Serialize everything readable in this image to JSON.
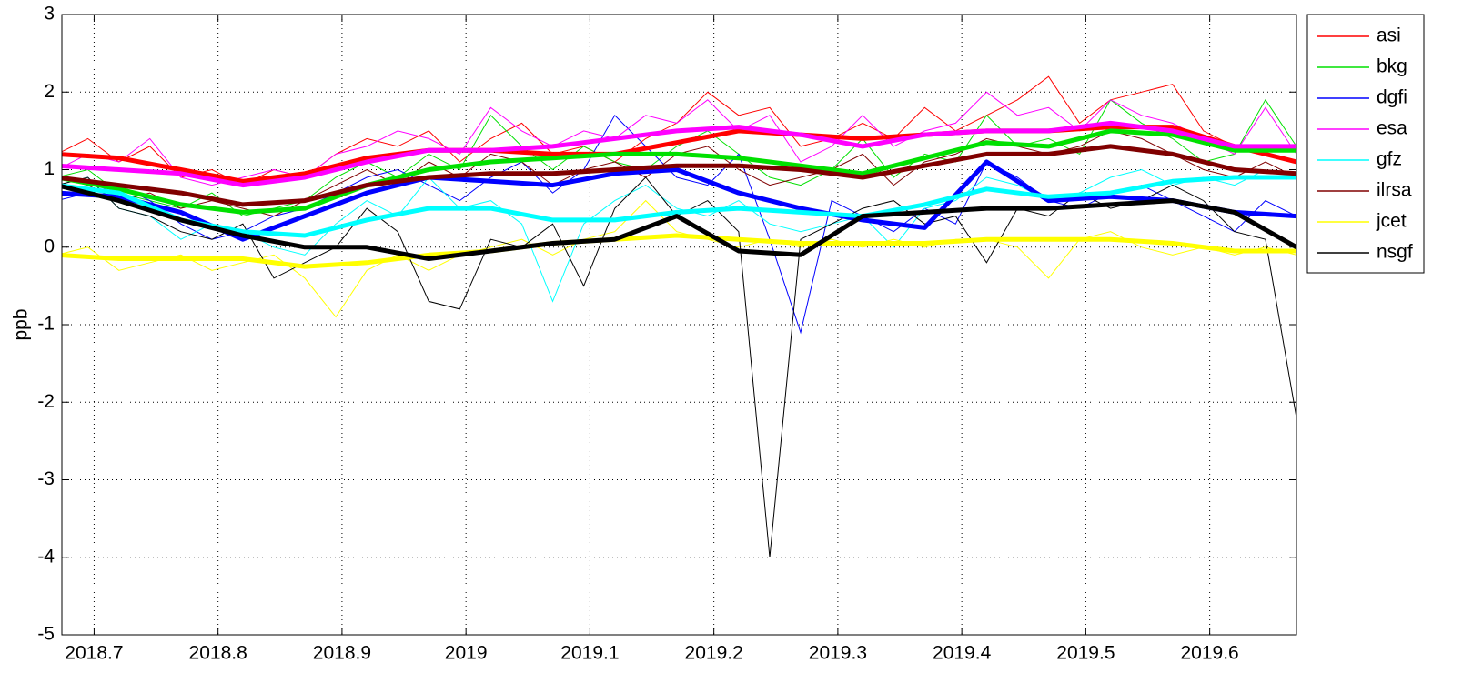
{
  "chart_data": {
    "type": "line",
    "ylabel": "ppb",
    "xlim": [
      2018.674,
      2019.67
    ],
    "ylim": [
      -5,
      3
    ],
    "xticks": [
      2018.7,
      2018.8,
      2018.9,
      2019,
      2019.1,
      2019.2,
      2019.3,
      2019.4,
      2019.5,
      2019.6
    ],
    "yticks": [
      -5,
      -4,
      -3,
      -2,
      -1,
      0,
      1,
      2,
      3
    ],
    "grid": true,
    "legend": "outside-right",
    "x": [
      2018.67,
      2018.695,
      2018.72,
      2018.745,
      2018.77,
      2018.795,
      2018.82,
      2018.845,
      2018.87,
      2018.895,
      2018.92,
      2018.945,
      2018.97,
      2018.995,
      2019.02,
      2019.045,
      2019.07,
      2019.095,
      2019.12,
      2019.145,
      2019.17,
      2019.195,
      2019.22,
      2019.245,
      2019.27,
      2019.295,
      2019.32,
      2019.345,
      2019.37,
      2019.395,
      2019.42,
      2019.445,
      2019.47,
      2019.495,
      2019.52,
      2019.545,
      2019.57,
      2019.595,
      2019.62,
      2019.645,
      2019.67
    ],
    "trend_x": [
      2018.67,
      2018.72,
      2018.77,
      2018.82,
      2018.87,
      2018.92,
      2018.97,
      2019.02,
      2019.07,
      2019.12,
      2019.17,
      2019.22,
      2019.27,
      2019.32,
      2019.37,
      2019.42,
      2019.47,
      2019.52,
      2019.57,
      2019.62,
      2019.67
    ],
    "series": [
      {
        "name": "asi",
        "color": "#ff0000",
        "values": [
          1.2,
          1.4,
          1.1,
          1.3,
          0.9,
          1.0,
          0.8,
          1.0,
          0.9,
          1.2,
          1.4,
          1.3,
          1.5,
          1.1,
          1.4,
          1.6,
          1.2,
          1.3,
          1.1,
          1.4,
          1.6,
          2.0,
          1.7,
          1.8,
          1.3,
          1.4,
          1.6,
          1.4,
          1.8,
          1.5,
          1.7,
          1.9,
          2.2,
          1.6,
          1.9,
          2.0,
          2.1,
          1.5,
          1.3,
          1.2,
          1.1
        ],
        "trend": [
          1.2,
          1.15,
          1.0,
          0.85,
          0.95,
          1.15,
          1.25,
          1.25,
          1.2,
          1.2,
          1.35,
          1.5,
          1.45,
          1.4,
          1.45,
          1.5,
          1.5,
          1.55,
          1.55,
          1.3,
          1.1
        ]
      },
      {
        "name": "bkg",
        "color": "#00e000",
        "values": [
          0.9,
          1.0,
          0.7,
          0.6,
          0.5,
          0.7,
          0.4,
          0.5,
          0.6,
          0.9,
          1.1,
          0.9,
          1.2,
          1.0,
          1.7,
          1.3,
          1.0,
          1.3,
          1.1,
          1.0,
          1.3,
          1.5,
          1.2,
          0.9,
          0.8,
          1.0,
          1.4,
          0.9,
          1.2,
          1.1,
          1.7,
          1.3,
          1.4,
          1.2,
          1.9,
          1.6,
          1.4,
          1.1,
          1.2,
          1.9,
          1.3
        ],
        "trend": [
          0.9,
          0.75,
          0.55,
          0.45,
          0.5,
          0.8,
          1.0,
          1.1,
          1.15,
          1.2,
          1.2,
          1.15,
          1.05,
          0.95,
          1.15,
          1.35,
          1.3,
          1.5,
          1.45,
          1.25,
          1.25
        ]
      },
      {
        "name": "dgfi",
        "color": "#0000ff",
        "values": [
          0.6,
          0.7,
          0.8,
          0.6,
          0.3,
          0.1,
          0.2,
          0.4,
          0.5,
          0.7,
          0.9,
          1.0,
          0.8,
          0.6,
          0.9,
          1.1,
          0.7,
          1.0,
          1.7,
          1.3,
          0.9,
          0.8,
          1.2,
          0.1,
          -1.1,
          0.6,
          0.4,
          0.2,
          0.5,
          0.3,
          1.1,
          0.9,
          0.6,
          0.5,
          0.7,
          0.8,
          0.6,
          0.4,
          0.2,
          0.6,
          0.4
        ],
        "trend": [
          0.7,
          0.65,
          0.45,
          0.1,
          0.4,
          0.7,
          0.9,
          0.85,
          0.8,
          0.95,
          1.0,
          0.7,
          0.5,
          0.35,
          0.25,
          1.1,
          0.6,
          0.65,
          0.6,
          0.45,
          0.4
        ]
      },
      {
        "name": "esa",
        "color": "#ff00ff",
        "values": [
          1.0,
          1.2,
          1.1,
          1.4,
          0.9,
          0.8,
          0.9,
          1.0,
          0.9,
          1.2,
          1.3,
          1.5,
          1.4,
          1.2,
          1.8,
          1.5,
          1.3,
          1.5,
          1.4,
          1.7,
          1.6,
          1.9,
          1.5,
          1.7,
          1.1,
          1.3,
          1.7,
          1.3,
          1.5,
          1.6,
          2.0,
          1.7,
          1.8,
          1.5,
          1.9,
          1.7,
          1.6,
          1.4,
          1.2,
          1.8,
          1.2
        ],
        "trend": [
          1.05,
          1.0,
          0.95,
          0.8,
          0.9,
          1.1,
          1.25,
          1.25,
          1.3,
          1.4,
          1.5,
          1.55,
          1.45,
          1.3,
          1.45,
          1.5,
          1.5,
          1.6,
          1.5,
          1.3,
          1.3
        ]
      },
      {
        "name": "gfz",
        "color": "#00ffff",
        "values": [
          0.8,
          0.9,
          0.5,
          0.4,
          0.1,
          0.3,
          0.2,
          0.0,
          -0.1,
          0.3,
          0.6,
          0.4,
          0.9,
          0.5,
          0.6,
          0.3,
          -0.7,
          0.3,
          0.6,
          0.8,
          0.5,
          0.4,
          0.6,
          0.3,
          0.2,
          0.3,
          0.4,
          0.0,
          0.5,
          0.6,
          0.9,
          0.8,
          0.6,
          0.7,
          0.9,
          1.0,
          0.8,
          0.9,
          0.8,
          1.0,
          0.9
        ],
        "trend": [
          0.8,
          0.7,
          0.35,
          0.2,
          0.15,
          0.35,
          0.5,
          0.5,
          0.35,
          0.35,
          0.45,
          0.5,
          0.45,
          0.4,
          0.55,
          0.75,
          0.65,
          0.7,
          0.85,
          0.9,
          0.9
        ]
      },
      {
        "name": "ilrsa",
        "color": "#800000",
        "values": [
          0.9,
          0.8,
          0.6,
          0.7,
          0.5,
          0.6,
          0.5,
          0.4,
          0.6,
          0.8,
          1.0,
          0.8,
          1.1,
          0.9,
          1.2,
          1.1,
          0.8,
          1.0,
          1.1,
          0.9,
          1.2,
          1.3,
          1.0,
          0.8,
          0.9,
          1.0,
          1.2,
          0.8,
          1.1,
          1.2,
          1.4,
          1.3,
          1.2,
          1.3,
          1.5,
          1.4,
          1.2,
          1.0,
          0.9,
          1.1,
          0.9
        ],
        "trend": [
          0.9,
          0.8,
          0.7,
          0.55,
          0.6,
          0.8,
          0.9,
          0.95,
          0.95,
          1.0,
          1.05,
          1.05,
          1.0,
          0.9,
          1.05,
          1.2,
          1.2,
          1.3,
          1.2,
          1.0,
          0.95
        ]
      },
      {
        "name": "jcet",
        "color": "#ffff00",
        "values": [
          -0.1,
          0.0,
          -0.3,
          -0.2,
          -0.1,
          -0.3,
          -0.2,
          -0.1,
          -0.4,
          -0.9,
          -0.3,
          -0.1,
          -0.3,
          -0.1,
          0.0,
          0.1,
          -0.1,
          0.1,
          0.2,
          0.6,
          0.2,
          0.1,
          0.0,
          0.1,
          0.0,
          0.1,
          0.0,
          0.1,
          0.0,
          0.1,
          0.1,
          0.0,
          -0.4,
          0.1,
          0.2,
          0.0,
          -0.1,
          0.0,
          -0.1,
          0.0,
          -0.1
        ],
        "trend": [
          -0.1,
          -0.15,
          -0.15,
          -0.15,
          -0.25,
          -0.2,
          -0.1,
          -0.05,
          0.05,
          0.1,
          0.15,
          0.1,
          0.05,
          0.05,
          0.05,
          0.1,
          0.1,
          0.1,
          0.05,
          -0.05,
          -0.05
        ]
      },
      {
        "name": "nsgf",
        "color": "#000000",
        "values": [
          0.8,
          0.9,
          0.5,
          0.4,
          0.2,
          0.1,
          0.3,
          -0.4,
          -0.2,
          0.0,
          0.5,
          0.2,
          -0.7,
          -0.8,
          0.1,
          0.0,
          0.3,
          -0.5,
          0.5,
          0.9,
          0.4,
          0.6,
          0.2,
          -4.0,
          0.1,
          0.3,
          0.5,
          0.6,
          0.3,
          0.4,
          -0.2,
          0.5,
          0.4,
          0.7,
          0.5,
          0.6,
          0.8,
          0.6,
          0.2,
          0.1,
          -2.2
        ],
        "trend": [
          0.8,
          0.6,
          0.35,
          0.15,
          0.0,
          0.0,
          -0.15,
          -0.05,
          0.05,
          0.1,
          0.4,
          -0.05,
          -0.1,
          0.4,
          0.45,
          0.5,
          0.5,
          0.55,
          0.6,
          0.45,
          0.0
        ]
      }
    ]
  }
}
